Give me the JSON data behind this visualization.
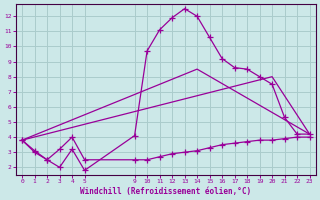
{
  "xlabel": "Windchill (Refroidissement éolien,°C)",
  "background_color": "#cce8e8",
  "grid_color": "#aacccc",
  "line_color": "#990099",
  "spine_color": "#440044",
  "xlim": [
    -0.5,
    23.5
  ],
  "ylim": [
    1.5,
    12.8
  ],
  "xticks": [
    0,
    1,
    2,
    3,
    4,
    5,
    9,
    10,
    11,
    12,
    13,
    14,
    15,
    16,
    17,
    18,
    19,
    20,
    21,
    22,
    23
  ],
  "yticks": [
    2,
    3,
    4,
    5,
    6,
    7,
    8,
    9,
    10,
    11,
    12
  ],
  "line1_x": [
    0,
    1,
    2,
    3,
    4,
    5,
    9,
    10,
    11,
    12,
    13,
    14,
    15,
    16,
    17,
    18,
    19,
    20,
    21,
    22,
    23
  ],
  "line1_y": [
    3.8,
    3.1,
    2.5,
    2.0,
    3.2,
    1.8,
    4.1,
    9.7,
    11.1,
    11.9,
    12.5,
    12.0,
    10.6,
    9.2,
    8.6,
    8.5,
    8.0,
    7.5,
    5.3,
    4.2,
    4.2
  ],
  "line2_x": [
    0,
    1,
    2,
    3,
    4,
    5,
    9,
    10,
    11,
    12,
    13,
    14,
    15,
    16,
    17,
    18,
    19,
    20,
    21,
    22,
    23
  ],
  "line2_y": [
    3.8,
    3.0,
    2.5,
    3.2,
    4.0,
    2.5,
    2.5,
    2.5,
    2.7,
    2.9,
    3.0,
    3.1,
    3.3,
    3.5,
    3.6,
    3.7,
    3.8,
    3.8,
    3.9,
    4.0,
    4.0
  ],
  "line3_x": [
    0,
    14,
    23
  ],
  "line3_y": [
    3.8,
    8.5,
    4.2
  ],
  "line4_x": [
    0,
    20,
    23
  ],
  "line4_y": [
    3.8,
    8.0,
    4.2
  ]
}
